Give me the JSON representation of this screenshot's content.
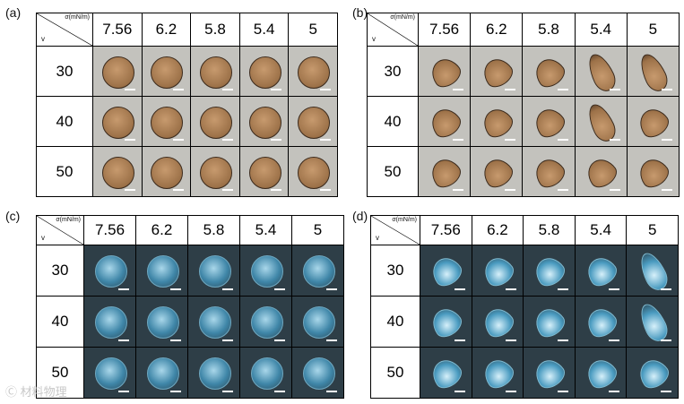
{
  "panels": [
    {
      "letter": "(a)",
      "imaging": "bright",
      "corner": {
        "top": "σ(mN/m)",
        "left": "v"
      },
      "columns": [
        "7.56",
        "6.2",
        "5.8",
        "5.4",
        "5"
      ],
      "rows": [
        "30",
        "40",
        "50"
      ],
      "shapes": [
        [
          "round",
          "round",
          "round",
          "round",
          "round"
        ],
        [
          "round",
          "round",
          "round",
          "round",
          "round"
        ],
        [
          "round",
          "round",
          "round",
          "round",
          "round"
        ]
      ]
    },
    {
      "letter": "(b)",
      "imaging": "bright",
      "corner": {
        "top": "σ(mN/m)",
        "left": "v"
      },
      "columns": [
        "7.56",
        "6.2",
        "5.8",
        "5.4",
        "5"
      ],
      "rows": [
        "30",
        "40",
        "50"
      ],
      "shapes": [
        [
          "drop",
          "drop",
          "drop",
          "tail",
          "tail"
        ],
        [
          "drop",
          "drop",
          "drop",
          "tail",
          "drop"
        ],
        [
          "drop",
          "drop",
          "drop",
          "drop",
          "drop"
        ]
      ]
    },
    {
      "letter": "(c)",
      "imaging": "dark",
      "corner": {
        "top": "σ(mN/m)",
        "left": "v"
      },
      "columns": [
        "7.56",
        "6.2",
        "5.8",
        "5.4",
        "5"
      ],
      "rows": [
        "30",
        "40",
        "50"
      ],
      "shapes": [
        [
          "round",
          "round",
          "round",
          "round",
          "round"
        ],
        [
          "round",
          "round",
          "round",
          "round",
          "round"
        ],
        [
          "round",
          "round",
          "round",
          "round",
          "round"
        ]
      ]
    },
    {
      "letter": "(d)",
      "imaging": "dark",
      "corner": {
        "top": "σ(mN/m)",
        "left": "v"
      },
      "columns": [
        "7.56",
        "6.2",
        "5.8",
        "5.4",
        "5"
      ],
      "rows": [
        "30",
        "40",
        "50"
      ],
      "shapes": [
        [
          "drop",
          "drop",
          "drop",
          "drop",
          "tail"
        ],
        [
          "drop",
          "drop",
          "drop",
          "drop",
          "tail"
        ],
        [
          "drop",
          "drop",
          "drop",
          "drop",
          "drop"
        ]
      ]
    }
  ],
  "watermark": "Ⓒ 材料物理"
}
